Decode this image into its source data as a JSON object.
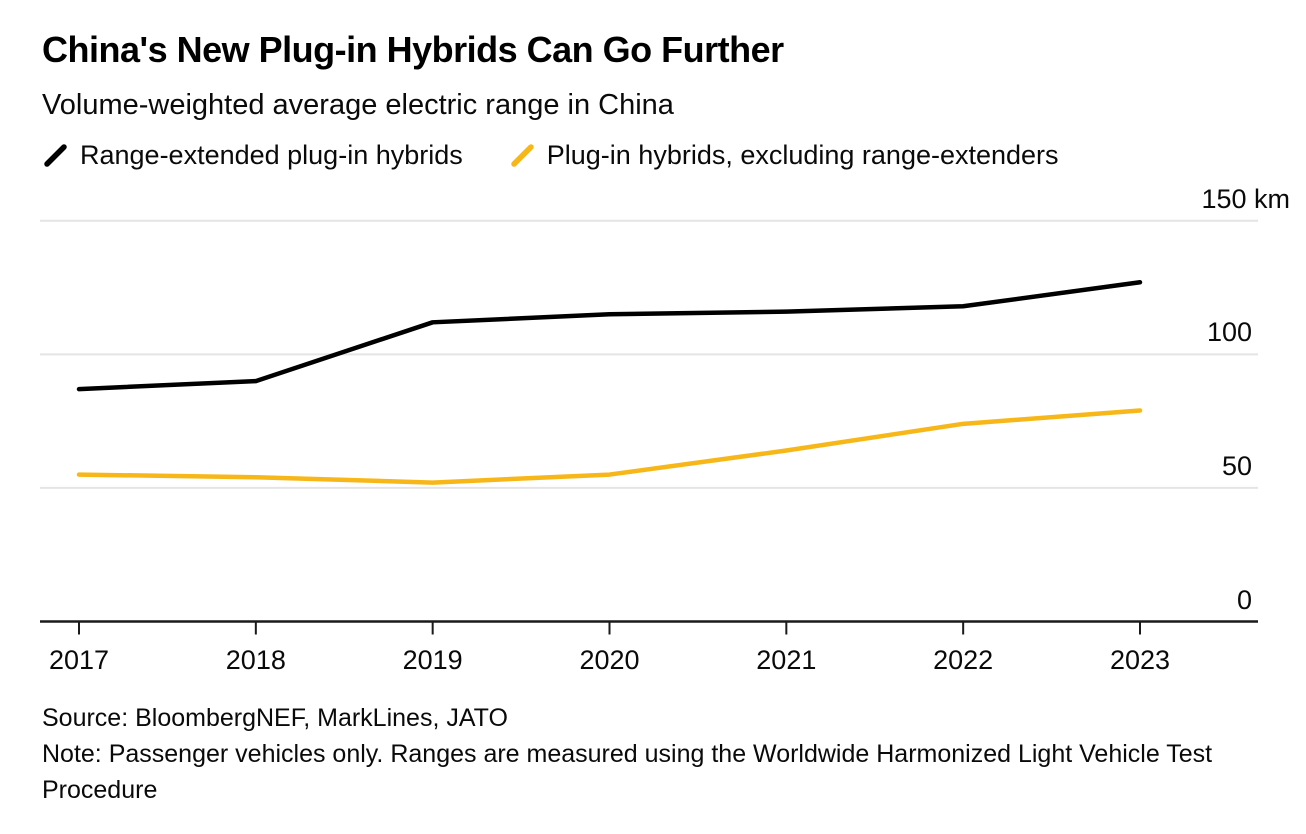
{
  "header": {
    "title": "China's New Plug-in Hybrids Can Go Further",
    "subtitle": "Volume-weighted average electric range in China"
  },
  "footer": {
    "source": "Source: BloombergNEF, MarkLines, JATO",
    "note": "Note: Passenger vehicles only. Ranges are measured using the Worldwide Harmonized Light Vehicle Test Procedure"
  },
  "colors": {
    "series_black": "#000000",
    "series_yellow": "#F7B718",
    "gridline": "#e4e4e4",
    "axis": "#1a1a1a",
    "background": "#ffffff"
  },
  "chart_data": {
    "type": "line",
    "title": "China's New Plug-in Hybrids Can Go Further",
    "subtitle": "Volume-weighted average electric range in China",
    "unit": "km",
    "x": [
      2017,
      2018,
      2019,
      2020,
      2021,
      2022,
      2023
    ],
    "ylim": [
      0,
      150
    ],
    "grid": "horizontal",
    "legend_position": "top",
    "y_ticks": [
      {
        "value": 150,
        "label": "150 km"
      },
      {
        "value": 100,
        "label": "100"
      },
      {
        "value": 50,
        "label": "50"
      },
      {
        "value": 0,
        "label": "0"
      }
    ],
    "series": [
      {
        "name": "Range-extended plug-in hybrids",
        "color": "#000000",
        "values": [
          87,
          90,
          112,
          115,
          116,
          118,
          127
        ]
      },
      {
        "name": "Plug-in hybrids, excluding range-extenders",
        "color": "#F7B718",
        "values": [
          55,
          54,
          52,
          55,
          64,
          74,
          79
        ]
      }
    ]
  }
}
